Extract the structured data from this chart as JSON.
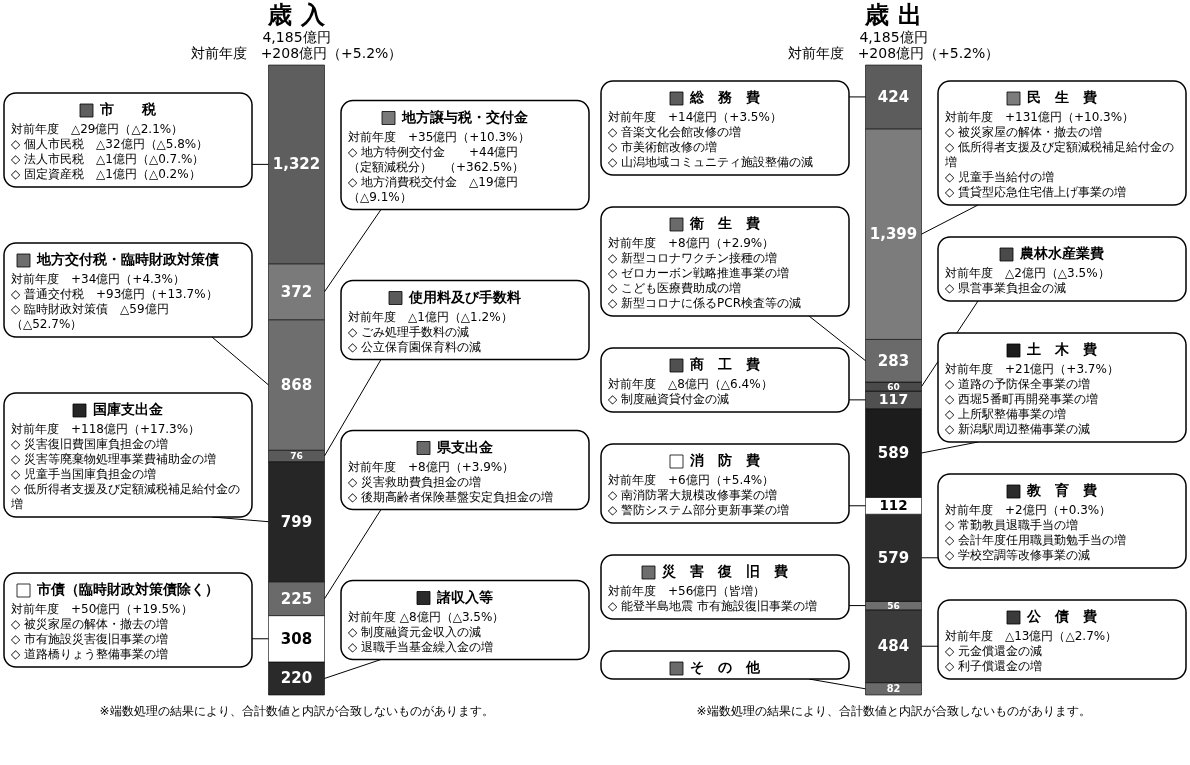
{
  "chart_data": [
    {
      "type": "bar",
      "title": "歳 入",
      "subtitle": "4,185億円",
      "categories": [
        null
      ],
      "stacked": true,
      "tick_labels": false,
      "legend": "left",
      "series": [
        {
          "name": "諸収入等",
          "color": "#2a2a2a",
          "values": [
            220
          ],
          "value_labels": [
            "220"
          ]
        },
        {
          "name": "市債（臨時財政対策債除く）",
          "color": "#ffffff",
          "values": [
            308
          ],
          "value_labels": [
            "308"
          ]
        },
        {
          "name": "県支出金",
          "color": "#6a6a6a",
          "values": [
            225
          ],
          "value_labels": [
            "225"
          ]
        },
        {
          "name": "国庫支出金",
          "color": "#262626",
          "values": [
            799
          ],
          "value_labels": [
            "799"
          ]
        },
        {
          "name": "使用料及び手数料",
          "color": "#5a5a5a",
          "values": [
            76
          ],
          "value_labels": [
            "76"
          ]
        },
        {
          "name": "地方交付税・臨時財政対策債",
          "color": "#6e6e6e",
          "values": [
            868
          ],
          "value_labels": [
            "868"
          ]
        },
        {
          "name": "地方譲与税・交付金",
          "color": "#7a7a7a",
          "values": [
            372
          ],
          "value_labels": [
            "372"
          ]
        },
        {
          "name": "市　　税",
          "color": "#5e5e5e",
          "values": [
            1322
          ],
          "value_labels": [
            "1,322"
          ]
        }
      ],
      "annotations": [
        "対前年度　+208億円（+5.2%）",
        "※端数処理の結果により、合計数値と内訳が合致しないものがあります。",
        "対前年度　△29億円（△2.1%）\n◇ 個人市民税　△32億円（△5.8%）\n◇ 法人市民税　△1億円（△0.7.%）\n◇ 固定資産税　△1億円（△0.2%）",
        "対前年度　+35億円（+10.3%）\n◇ 地方特例交付金　　+44億円（定額減税分）　（+362.5%）\n◇ 地方消費税交付金　△19億円（△9.1%）",
        "対前年度　+34億円（+4.3%）\n◇ 普通交付税　+93億円（+13.7%）\n◇ 臨時財政対策債　△59億円（△52.7%）",
        "対前年度　△1億円（△1.2%）\n◇ ごみ処理手数料の減\n◇ 公立保育園保育料の減",
        "対前年度　+118億円（+17.3%）\n◇ 災害復旧費国庫負担金の増\n◇ 災害等廃棄物処理事業費補助金の増\n◇ 児童手当国庫負担金の増\n◇ 低所得者支援及び定額減税補足給付金の増",
        "対前年度　+8億円（+3.9%）\n◇ 災害救助費負担金の増\n◇ 後期高齢者保険基盤安定負担金の増",
        "対前年度　+50億円（+19.5%）\n◇ 被災家屋の解体・撤去の増\n◇ 市有施設災害復旧事業の増\n◇ 道路橋りょう整備事業の増",
        "対前年度 △8億円（△3.5%）\n◇ 制度融資元金収入の減\n◇ 退職手当基金繰入金の増"
      ]
    },
    {
      "type": "bar",
      "title": "歳 出",
      "subtitle": "4,185億円",
      "categories": [
        null
      ],
      "stacked": true,
      "tick_labels": false,
      "legend": "left",
      "series": [
        {
          "name": "そ　の　他",
          "color": "#6a6a6a",
          "values": [
            82
          ],
          "value_labels": [
            "82"
          ]
        },
        {
          "name": "公　債　費",
          "color": "#3a3a3a",
          "values": [
            484
          ],
          "value_labels": [
            "484"
          ]
        },
        {
          "name": "災　害　復　旧　費",
          "color": "#6e6e6e",
          "values": [
            56
          ],
          "value_labels": [
            "56"
          ]
        },
        {
          "name": "教　育　費",
          "color": "#2c2c2c",
          "values": [
            579
          ],
          "value_labels": [
            "579"
          ]
        },
        {
          "name": "消　防　費",
          "color": "#ffffff",
          "values": [
            112
          ],
          "value_labels": [
            "112"
          ]
        },
        {
          "name": "土　木　費",
          "color": "#1c1c1c",
          "values": [
            589
          ],
          "value_labels": [
            "589"
          ]
        },
        {
          "name": "商　工　費",
          "color": "#505050",
          "values": [
            117
          ],
          "value_labels": [
            "117"
          ]
        },
        {
          "name": "農林水産業費",
          "color": "#4a4a4a",
          "values": [
            60
          ],
          "value_labels": [
            "60"
          ]
        },
        {
          "name": "衛　生　費",
          "color": "#6a6a6a",
          "values": [
            283
          ],
          "value_labels": [
            "283"
          ]
        },
        {
          "name": "民　生　費",
          "color": "#7c7c7c",
          "values": [
            1399
          ],
          "value_labels": [
            "1,399"
          ]
        },
        {
          "name": "総　務　費",
          "color": "#5c5c5c",
          "values": [
            424
          ],
          "value_labels": [
            "424"
          ]
        }
      ],
      "annotations": [
        "対前年度　+208億円（+5.2%）",
        "※端数処理の結果により、合計数値と内訳が合致しないものがあります。",
        "対前年度　+14億円（+3.5%）\n◇ 音楽文化会館改修の増\n◇ 市美術館改修の増\n◇ 山潟地域コミュニティ施設整備の減",
        "対前年度　+131億円（+10.3%）\n◇ 被災家屋の解体・撤去の増\n◇ 低所得者支援及び定額減税補足給付金の増\n◇ 児童手当給付の増\n◇ 賃貸型応急住宅借上げ事業の増",
        "対前年度　+8億円（+2.9%）\n◇ 新型コロナワクチン接種の増\n◇ ゼロカーボン戦略推進事業の増\n◇ こども医療費助成の増\n◇ 新型コロナに係るPCR検査等の減",
        "対前年度　△2億円（△3.5%）\n◇ 県営事業負担金の減",
        "対前年度　△8億円（△6.4%）\n◇ 制度融資貸付金の減",
        "対前年度　+21億円（+3.7%）\n◇ 道路の予防保全事業の増\n◇ 西堀5番町再開発事業の増\n◇ 上所駅整備事業の増\n◇ 新潟駅周辺整備事業の減",
        "対前年度　+6億円（+5.4%）\n◇ 南消防署大規模改修事業の増\n◇ 警防システム部分更新事業の増",
        "対前年度　+2億円（+0.3%）\n◇ 常勤教員退職手当の増\n◇ 会計年度任用職員勤勉手当の増\n◇ 学校空調等改修事業の減",
        "対前年度　+56億円（皆増）\n◇ 能登半島地震 市有施設復旧事業の増",
        "対前年度　△13億円（△2.7%）\n◇ 元金償還金の減\n◇ 利子償還金の増"
      ]
    }
  ]
}
